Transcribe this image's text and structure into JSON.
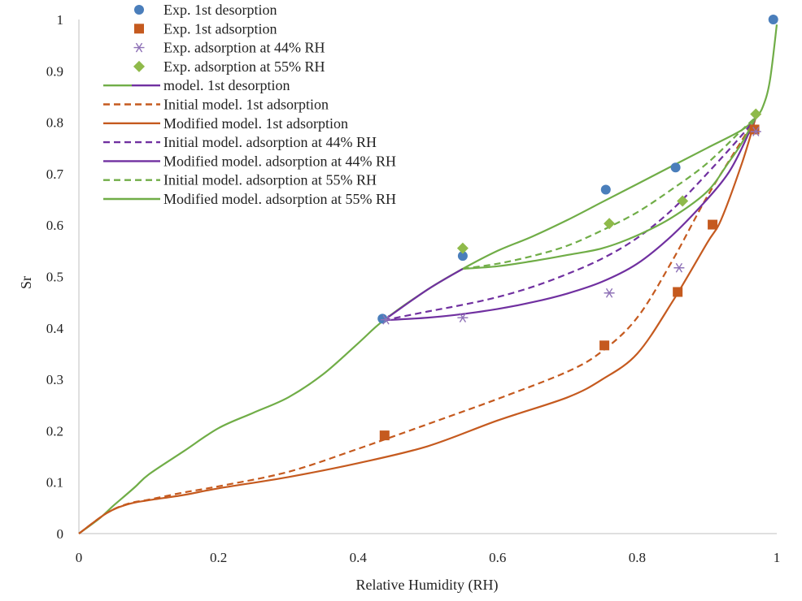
{
  "chart_data": {
    "type": "scatter",
    "title": "",
    "xlabel": "Relative Humidity (RH)",
    "ylabel": "Sr",
    "xlim": [
      0,
      1
    ],
    "ylim": [
      0,
      1
    ],
    "x_ticks": [
      "0",
      "0.2",
      "0.4",
      "0.6",
      "0.8",
      "1"
    ],
    "y_ticks": [
      "0",
      "0.1",
      "0.2",
      "0.3",
      "0.4",
      "0.5",
      "0.6",
      "0.7",
      "0.8",
      "0.9",
      "1"
    ],
    "grid": false,
    "legend_position": "top-left",
    "series": [
      {
        "name": "Exp. 1st desorption",
        "kind": "marker",
        "marker": "circle",
        "color": "#4a7ebb",
        "points": [
          [
            0.435,
            0.418
          ],
          [
            0.55,
            0.54
          ],
          [
            0.755,
            0.669
          ],
          [
            0.855,
            0.712
          ],
          [
            0.995,
            1.0
          ]
        ]
      },
      {
        "name": "Exp. 1st adsorption",
        "kind": "marker",
        "marker": "square",
        "color": "#c55a1f",
        "points": [
          [
            0.438,
            0.191
          ],
          [
            0.753,
            0.366
          ],
          [
            0.858,
            0.47
          ],
          [
            0.908,
            0.601
          ],
          [
            0.968,
            0.786
          ]
        ]
      },
      {
        "name": "Exp. adsorption at 44% RH",
        "kind": "marker",
        "marker": "asterisk",
        "color": "#8f72b7",
        "points": [
          [
            0.44,
            0.416
          ],
          [
            0.55,
            0.42
          ],
          [
            0.76,
            0.468
          ],
          [
            0.86,
            0.517
          ],
          [
            0.97,
            0.782
          ]
        ]
      },
      {
        "name": "Exp. adsorption at 55% RH",
        "kind": "marker",
        "marker": "diamond",
        "color": "#8fba4a",
        "points": [
          [
            0.55,
            0.555
          ],
          [
            0.76,
            0.603
          ],
          [
            0.865,
            0.647
          ],
          [
            0.97,
            0.816
          ]
        ]
      },
      {
        "name": "model. 1st desorption",
        "kind": "line",
        "dash": "solid",
        "color": "#70ad47",
        "color2": "#7030a0",
        "points": [
          [
            0.0,
            0.0
          ],
          [
            0.03,
            0.03
          ],
          [
            0.05,
            0.055
          ],
          [
            0.08,
            0.09
          ],
          [
            0.1,
            0.115
          ],
          [
            0.15,
            0.16
          ],
          [
            0.2,
            0.205
          ],
          [
            0.25,
            0.235
          ],
          [
            0.3,
            0.265
          ],
          [
            0.35,
            0.31
          ],
          [
            0.4,
            0.37
          ],
          [
            0.437,
            0.415
          ],
          [
            0.5,
            0.475
          ],
          [
            0.55,
            0.515
          ],
          [
            0.6,
            0.55
          ],
          [
            0.65,
            0.578
          ],
          [
            0.7,
            0.61
          ],
          [
            0.75,
            0.645
          ],
          [
            0.8,
            0.68
          ],
          [
            0.85,
            0.715
          ],
          [
            0.9,
            0.75
          ],
          [
            0.95,
            0.785
          ],
          [
            0.97,
            0.81
          ],
          [
            0.98,
            0.83
          ],
          [
            0.99,
            0.88
          ],
          [
            1.0,
            0.99
          ]
        ]
      },
      {
        "name": "Initial model. 1st adsorption",
        "kind": "line",
        "dash": "dashed",
        "color": "#c55a1f",
        "points": [
          [
            0.0,
            0.0
          ],
          [
            0.04,
            0.04
          ],
          [
            0.07,
            0.058
          ],
          [
            0.1,
            0.066
          ],
          [
            0.15,
            0.08
          ],
          [
            0.2,
            0.092
          ],
          [
            0.3,
            0.12
          ],
          [
            0.4,
            0.165
          ],
          [
            0.5,
            0.213
          ],
          [
            0.6,
            0.262
          ],
          [
            0.7,
            0.315
          ],
          [
            0.75,
            0.355
          ],
          [
            0.8,
            0.42
          ],
          [
            0.85,
            0.53
          ],
          [
            0.9,
            0.655
          ],
          [
            0.95,
            0.765
          ],
          [
            0.97,
            0.81
          ]
        ]
      },
      {
        "name": "Modified model. 1st adsorption",
        "kind": "line",
        "dash": "solid",
        "color": "#c55a1f",
        "points": [
          [
            0.0,
            0.0
          ],
          [
            0.04,
            0.04
          ],
          [
            0.07,
            0.057
          ],
          [
            0.1,
            0.065
          ],
          [
            0.15,
            0.075
          ],
          [
            0.2,
            0.088
          ],
          [
            0.3,
            0.11
          ],
          [
            0.4,
            0.137
          ],
          [
            0.5,
            0.17
          ],
          [
            0.6,
            0.22
          ],
          [
            0.7,
            0.265
          ],
          [
            0.75,
            0.3
          ],
          [
            0.8,
            0.35
          ],
          [
            0.85,
            0.45
          ],
          [
            0.9,
            0.565
          ],
          [
            0.92,
            0.61
          ],
          [
            0.95,
            0.72
          ],
          [
            0.97,
            0.81
          ]
        ]
      },
      {
        "name": "Initial model. adsorption at 44% RH",
        "kind": "line",
        "dash": "dashed",
        "color": "#7030a0",
        "points": [
          [
            0.437,
            0.415
          ],
          [
            0.5,
            0.432
          ],
          [
            0.55,
            0.445
          ],
          [
            0.6,
            0.46
          ],
          [
            0.65,
            0.48
          ],
          [
            0.7,
            0.505
          ],
          [
            0.75,
            0.535
          ],
          [
            0.8,
            0.575
          ],
          [
            0.85,
            0.63
          ],
          [
            0.9,
            0.7
          ],
          [
            0.95,
            0.775
          ],
          [
            0.97,
            0.81
          ]
        ]
      },
      {
        "name": "Modified model. adsorption at 44% RH",
        "kind": "line",
        "dash": "solid",
        "color": "#7030a0",
        "points": [
          [
            0.437,
            0.415
          ],
          [
            0.5,
            0.42
          ],
          [
            0.55,
            0.427
          ],
          [
            0.6,
            0.437
          ],
          [
            0.65,
            0.45
          ],
          [
            0.7,
            0.467
          ],
          [
            0.75,
            0.49
          ],
          [
            0.8,
            0.525
          ],
          [
            0.85,
            0.58
          ],
          [
            0.9,
            0.65
          ],
          [
            0.93,
            0.7
          ],
          [
            0.95,
            0.75
          ],
          [
            0.97,
            0.81
          ]
        ]
      },
      {
        "name": "Initial model. adsorption at 55% RH",
        "kind": "line",
        "dash": "dashed",
        "color": "#70ad47",
        "points": [
          [
            0.55,
            0.515
          ],
          [
            0.6,
            0.525
          ],
          [
            0.65,
            0.54
          ],
          [
            0.7,
            0.56
          ],
          [
            0.75,
            0.59
          ],
          [
            0.8,
            0.625
          ],
          [
            0.85,
            0.67
          ],
          [
            0.9,
            0.72
          ],
          [
            0.95,
            0.785
          ],
          [
            0.97,
            0.81
          ]
        ]
      },
      {
        "name": "Modified model. adsorption at 55% RH",
        "kind": "line",
        "dash": "solid",
        "color": "#70ad47",
        "points": [
          [
            0.55,
            0.515
          ],
          [
            0.6,
            0.52
          ],
          [
            0.65,
            0.53
          ],
          [
            0.7,
            0.542
          ],
          [
            0.75,
            0.555
          ],
          [
            0.8,
            0.58
          ],
          [
            0.85,
            0.615
          ],
          [
            0.9,
            0.665
          ],
          [
            0.93,
            0.72
          ],
          [
            0.95,
            0.76
          ],
          [
            0.97,
            0.81
          ]
        ]
      }
    ]
  }
}
